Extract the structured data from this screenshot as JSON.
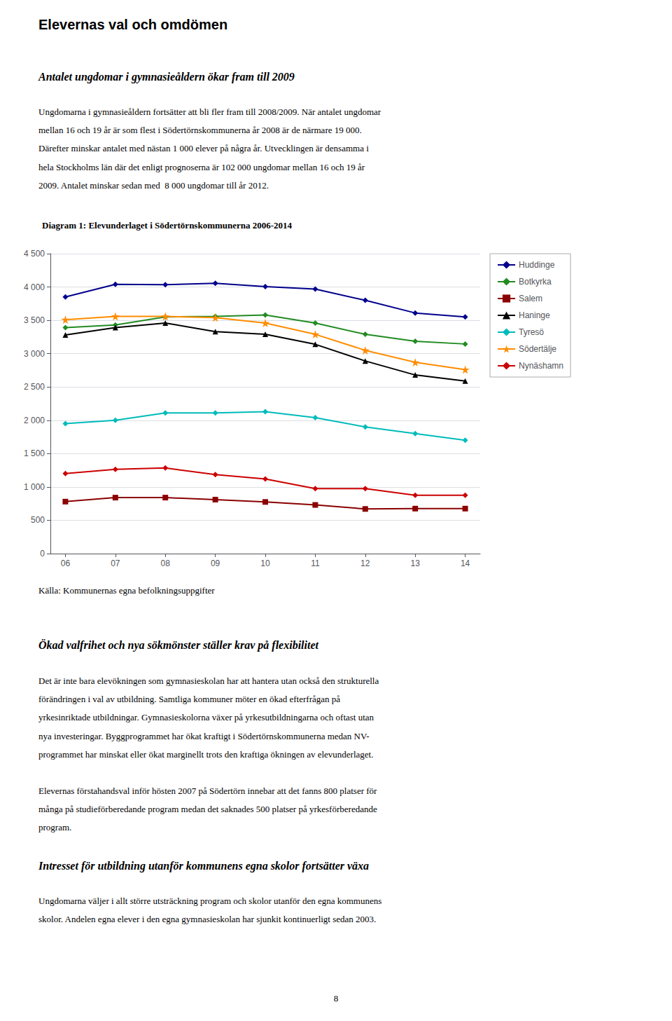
{
  "chart_data": {
    "type": "line",
    "title": "Diagram 1: Elevunderlaget i Södertörnskommunerna 2006-2014",
    "annotations": [
      "Elevernas val och omdömen",
      "Antalet ungdomar i gymnasieåldern ökar fram till 2009",
      "Ungdomarna i gymnasieåldern fortsätter att bli fler fram till 2008/2009. När antalet ungdomar",
      "mellan 16 och 19 år är som flest i Södertörnskommunerna år 2008 är de närmare 19 000.",
      "Därefter minskar antalet med nästan 1 000 elever på några år. Utvecklingen är densamma i",
      "hela Stockholms län där det enligt prognoserna är 102 000 ungdomar mellan 16 och 19 år",
      "2009. Antalet minskar sedan med  8 000 ungdomar till år 2012.",
      "Källa: Kommunernas egna befolkningsuppgifter",
      "Ökad valfrihet och nya sökmönster ställer krav på flexibilitet",
      "Det är inte bara elevökningen som gymnasieskolan har att hantera utan också den strukturella",
      "förändringen i val av utbildning. Samtliga kommuner möter en ökad efterfrågan på",
      "yrkesinriktade utbildningar. Gymnasieskolorna växer på yrkesutbildningarna och oftast utan",
      "nya investeringar. Byggprogrammet har ökat kraftigt i Södertörnskommunerna medan NV-",
      "programmet har minskat eller ökat marginellt trots den kraftiga ökningen av elevunderlaget.",
      "Elevernas förstahandsval inför hösten 2007 på Södertörn innebar att det fanns 800 platser för",
      "många på studieförberedande program medan det saknades 500 platser på yrkesförberedande",
      "program.",
      "Intresset för utbildning utanför kommunens egna skolor fortsätter växa",
      "Ungdomarna väljer i allt större utsträckning program och skolor utanför den egna kommunens",
      "skolor. Andelen egna elever i den egna gymnasieskolan har sjunkit kontinuerligt sedan 2003.",
      "8"
    ],
    "x": [
      6,
      7,
      8,
      9,
      10,
      11,
      12,
      13,
      14
    ],
    "xlim": [
      5.7,
      14.3
    ],
    "xticks": [
      {
        "value": 6,
        "label": "06"
      },
      {
        "value": 7,
        "label": "07"
      },
      {
        "value": 8,
        "label": "08"
      },
      {
        "value": 9,
        "label": "09"
      },
      {
        "value": 10,
        "label": "10"
      },
      {
        "value": 11,
        "label": "11"
      },
      {
        "value": 12,
        "label": "12"
      },
      {
        "value": 13,
        "label": "13"
      },
      {
        "value": 14,
        "label": "14"
      }
    ],
    "ylim": [
      0,
      4500
    ],
    "yticks": [
      0,
      500,
      {
        "value": 1000,
        "label": "1 000"
      },
      {
        "value": 1500,
        "label": "1 500"
      },
      {
        "value": 2000,
        "label": "2 000"
      },
      {
        "value": 2500,
        "label": "2 500"
      },
      {
        "value": 3000,
        "label": "3 000"
      },
      {
        "value": 3500,
        "label": "3 500"
      },
      {
        "value": 4000,
        "label": "4 000"
      },
      {
        "value": 4500,
        "label": "4 500"
      }
    ],
    "grid": true,
    "legend": "upper right",
    "series": [
      {
        "name": "Huddinge",
        "color": "#00008B",
        "marker": "diamond",
        "values": [
          3850,
          4040,
          4035,
          4055,
          4005,
          3970,
          3800,
          3610,
          3550
        ]
      },
      {
        "name": "Botkyrka",
        "color": "#228B22",
        "marker": "diamond",
        "values": [
          3390,
          3430,
          3550,
          3560,
          3580,
          3460,
          3290,
          3185,
          3145
        ]
      },
      {
        "name": "Salem",
        "color": "#8B0000",
        "marker": "square",
        "values": [
          780,
          840,
          840,
          810,
          775,
          730,
          670,
          675,
          675
        ]
      },
      {
        "name": "Haninge",
        "color": "#000000",
        "marker": "triangle",
        "values": [
          3280,
          3390,
          3460,
          3330,
          3290,
          3140,
          2890,
          2680,
          2590
        ]
      },
      {
        "name": "Tyresö",
        "color": "#00BBBB",
        "marker": "diamond",
        "values": [
          1950,
          2000,
          2110,
          2110,
          2130,
          2040,
          1900,
          1800,
          1700
        ]
      },
      {
        "name": "Södertälje",
        "color": "#FF8C00",
        "marker": "star",
        "values": [
          3510,
          3560,
          3560,
          3540,
          3460,
          3290,
          3050,
          2870,
          2760
        ]
      },
      {
        "name": "Nynäshamn",
        "color": "#CC0000",
        "marker": "diamond",
        "values": [
          1200,
          1265,
          1285,
          1185,
          1120,
          975,
          975,
          875,
          875
        ]
      }
    ]
  }
}
